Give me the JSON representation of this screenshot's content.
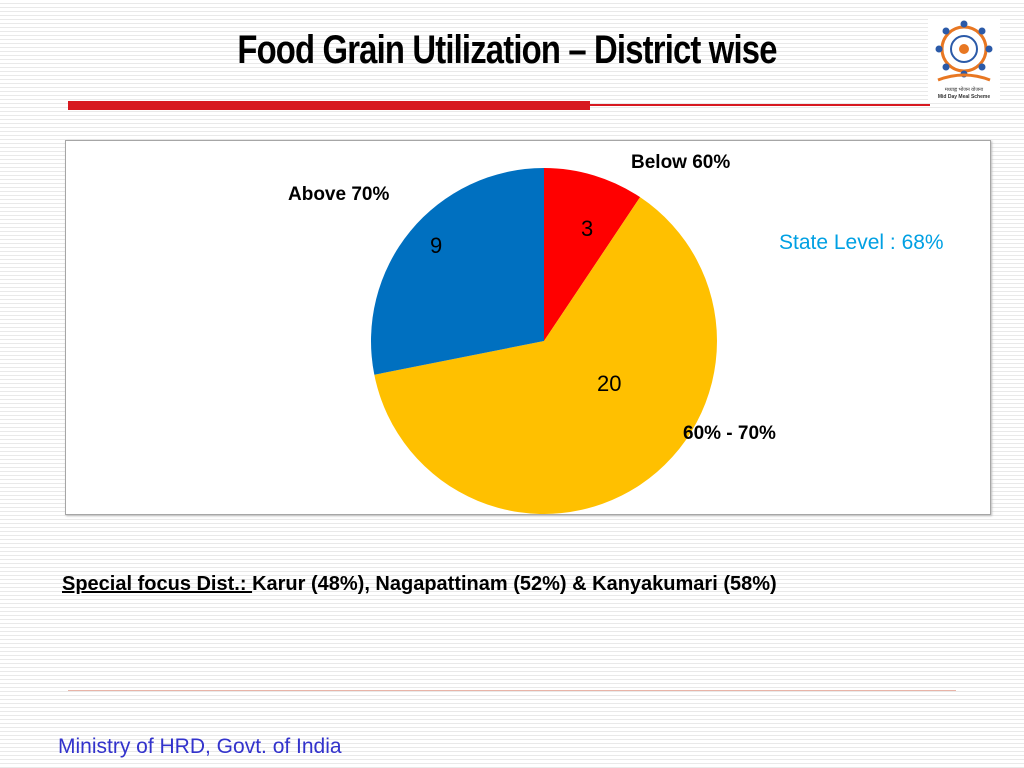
{
  "slide": {
    "title": "Food Grain Utilization – District wise",
    "state_level": "State Level : 68%",
    "special_focus_label": "Special focus Dist.: ",
    "special_focus_text": "Karur (48%), Nagapattinam (52%) & Kanyakumari (58%)",
    "footer": "Ministry of HRD, Govt. of India",
    "logo_line1": "मध्याह्न भोजन योजना",
    "logo_line2": "Mid Day Meal Scheme"
  },
  "colors": {
    "title_bar": "#d71920",
    "state_level_text": "#00a0e3",
    "footer_text": "#3333cc"
  },
  "chart_data": {
    "type": "pie",
    "categories": [
      "Below 60%",
      "60% - 70%",
      "Above 70%"
    ],
    "values": [
      3,
      20,
      9
    ],
    "colors": [
      "#ff0000",
      "#ffc000",
      "#0070c0"
    ],
    "data_labels": [
      "3",
      "20",
      "9"
    ]
  }
}
